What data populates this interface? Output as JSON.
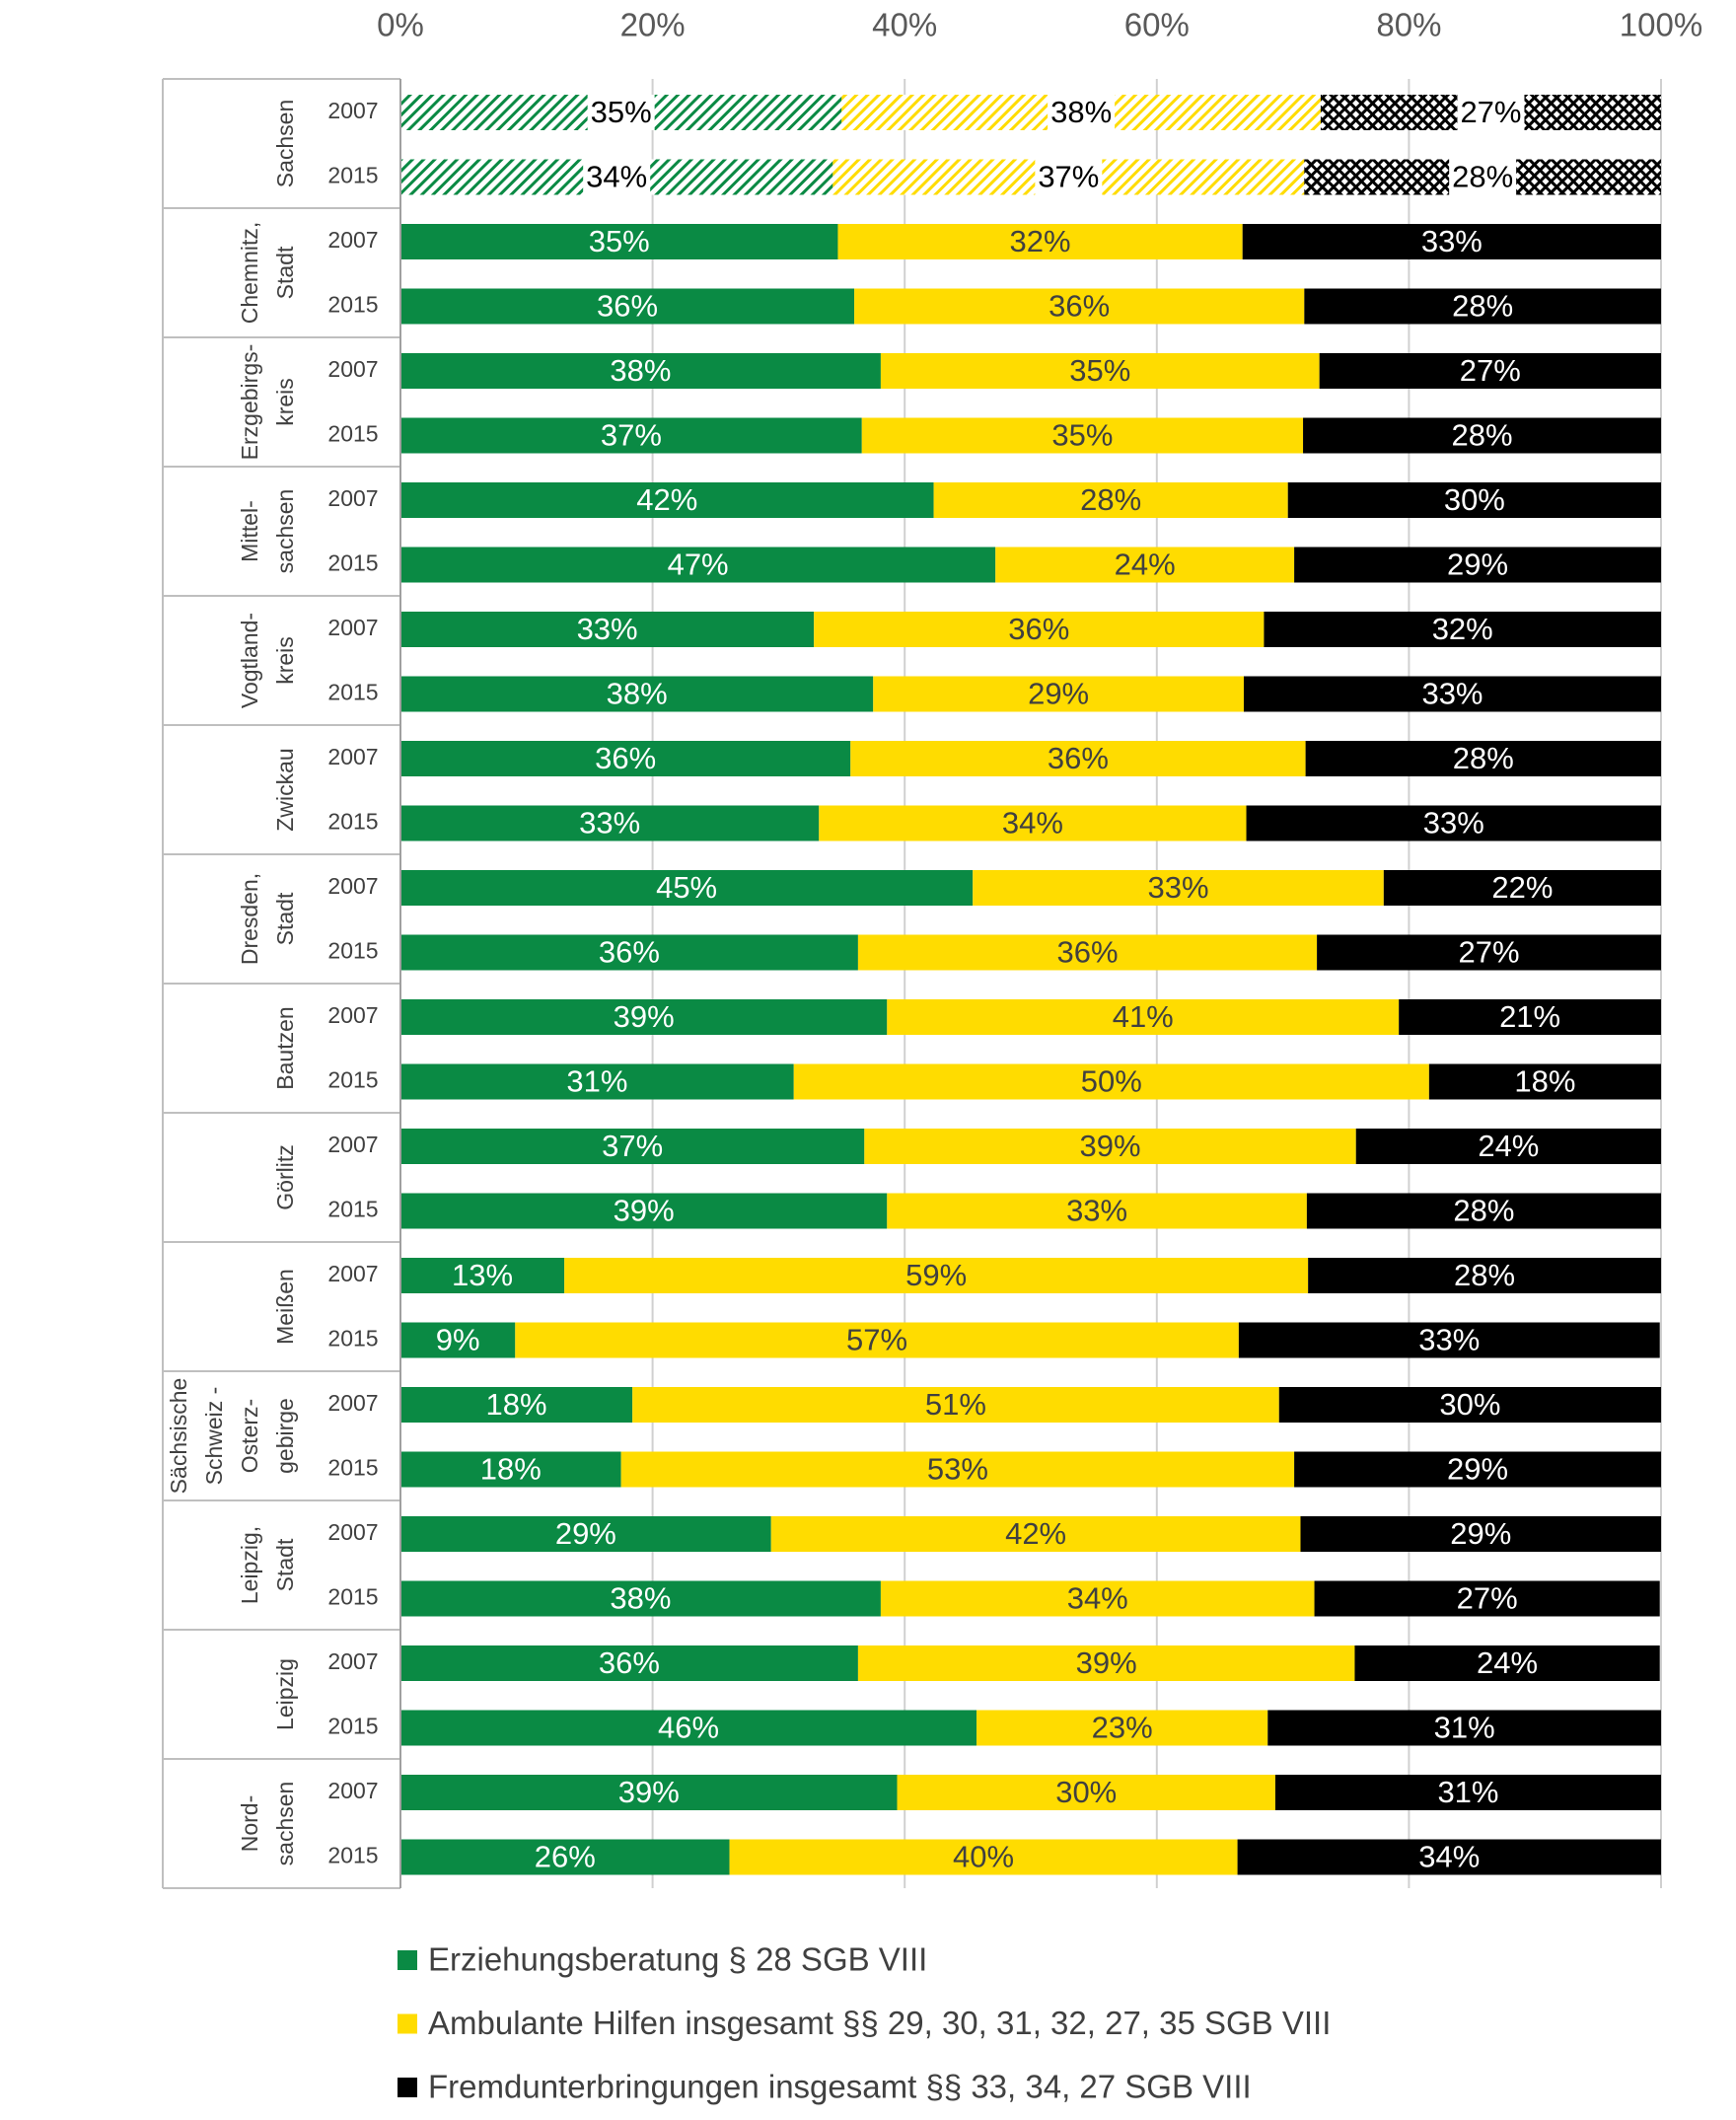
{
  "chart_data": {
    "type": "stacked-bar-horizontal",
    "xlim": [
      0,
      100
    ],
    "xticks": [
      {
        "value": 0,
        "label": "0%"
      },
      {
        "value": 20,
        "label": "20%"
      },
      {
        "value": 40,
        "label": "40%"
      },
      {
        "value": 60,
        "label": "60%"
      },
      {
        "value": 80,
        "label": "80%"
      },
      {
        "value": 100,
        "label": "100%"
      }
    ],
    "grid": true,
    "legend": "bottom",
    "groups": [
      {
        "lines": [
          "Sachsen"
        ],
        "years": [
          "2007",
          "2015"
        ],
        "hatched": true
      },
      {
        "lines": [
          "Chemnitz,",
          "Stadt"
        ],
        "years": [
          "2007",
          "2015"
        ]
      },
      {
        "lines": [
          "Erzgebirgs-",
          "kreis"
        ],
        "years": [
          "2007",
          "2015"
        ]
      },
      {
        "lines": [
          "Mittel-",
          "sachsen"
        ],
        "years": [
          "2007",
          "2015"
        ]
      },
      {
        "lines": [
          "Vogtland-",
          "kreis"
        ],
        "years": [
          "2007",
          "2015"
        ]
      },
      {
        "lines": [
          "Zwickau"
        ],
        "years": [
          "2007",
          "2015"
        ]
      },
      {
        "lines": [
          "Dresden,",
          "Stadt"
        ],
        "years": [
          "2007",
          "2015"
        ]
      },
      {
        "lines": [
          "Bautzen"
        ],
        "years": [
          "2007",
          "2015"
        ]
      },
      {
        "lines": [
          "Görlitz"
        ],
        "years": [
          "2007",
          "2015"
        ]
      },
      {
        "lines": [
          "Meißen"
        ],
        "years": [
          "2007",
          "2015"
        ]
      },
      {
        "lines": [
          "Sächsische",
          "Schweiz -",
          "Osterz-",
          "gebirge"
        ],
        "years": [
          "2007",
          "2015"
        ]
      },
      {
        "lines": [
          "Leipzig,",
          "Stadt"
        ],
        "years": [
          "2007",
          "2015"
        ]
      },
      {
        "lines": [
          "Leipzig"
        ],
        "years": [
          "2007",
          "2015"
        ]
      },
      {
        "lines": [
          "Nord-",
          "sachsen"
        ],
        "years": [
          "2007",
          "2015"
        ]
      }
    ],
    "series": [
      {
        "name": "Erziehungsberatung § 28 SGB VIII",
        "color": "#0a8a44",
        "label_color": "#ffffff",
        "values": [
          35,
          34.3,
          34.7,
          36.0,
          38.1,
          36.6,
          42.3,
          47.2,
          32.8,
          37.5,
          35.7,
          33.2,
          45.4,
          36.3,
          38.6,
          31.2,
          36.8,
          38.6,
          13.0,
          9.1,
          18.4,
          17.5,
          29.4,
          38.1,
          36.3,
          45.7,
          39.4,
          26.1
        ],
        "value_labels": [
          "35%",
          "34%",
          "35%",
          "36%",
          "38%",
          "37%",
          "42%",
          "47%",
          "33%",
          "38%",
          "36%",
          "33%",
          "45%",
          "36%",
          "39%",
          "31%",
          "37%",
          "39%",
          "13%",
          "9%",
          "18%",
          "18%",
          "29%",
          "38%",
          "36%",
          "46%",
          "39%",
          "26%"
        ]
      },
      {
        "name": "Ambulante Hilfen insgesamt §§ 29, 30, 31, 32, 27, 35 SGB VIII",
        "color": "#ffdc00",
        "label_color": "#404040",
        "values": [
          38,
          37.4,
          32.1,
          35.7,
          34.8,
          35.0,
          28.1,
          23.7,
          35.7,
          29.4,
          36.1,
          33.9,
          32.6,
          36.4,
          40.6,
          50.4,
          39.0,
          33.3,
          59.0,
          57.4,
          51.3,
          53.4,
          42.0,
          34.4,
          39.4,
          23.1,
          30.0,
          40.3
        ],
        "value_labels": [
          "38%",
          "37%",
          "32%",
          "36%",
          "35%",
          "35%",
          "28%",
          "24%",
          "36%",
          "29%",
          "36%",
          "34%",
          "33%",
          "36%",
          "41%",
          "50%",
          "39%",
          "33%",
          "59%",
          "57%",
          "51%",
          "53%",
          "42%",
          "34%",
          "39%",
          "23%",
          "30%",
          "40%"
        ]
      },
      {
        "name": "Fremdunterbringungen insgesamt §§ 33, 34, 27 SGB VIII",
        "color": "#000000",
        "label_color": "#ffffff",
        "values": [
          27,
          28.3,
          33.2,
          28.3,
          27.1,
          28.4,
          29.6,
          29.1,
          31.5,
          33.1,
          28.2,
          32.9,
          22.0,
          27.3,
          20.8,
          18.4,
          24.2,
          28.1,
          28.0,
          33.4,
          30.3,
          29.1,
          28.6,
          27.4,
          24.2,
          31.2,
          30.6,
          33.6
        ],
        "value_labels": [
          "27%",
          "28%",
          "33%",
          "28%",
          "27%",
          "28%",
          "30%",
          "29%",
          "32%",
          "33%",
          "28%",
          "33%",
          "22%",
          "27%",
          "21%",
          "18%",
          "24%",
          "28%",
          "28%",
          "33%",
          "30%",
          "29%",
          "29%",
          "27%",
          "24%",
          "31%",
          "31%",
          "34%"
        ]
      }
    ]
  }
}
